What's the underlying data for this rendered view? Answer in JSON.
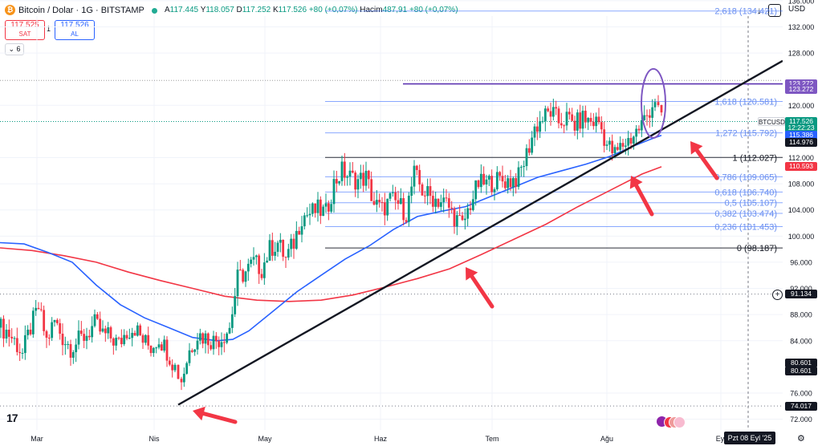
{
  "header": {
    "logo_glyph": "₿",
    "symbol_title": "Bitcoin / Dolar · 1G · BITSTAMP",
    "ohlc": {
      "open_label": "A",
      "open": "117.445",
      "high_label": "Y",
      "high": "118.057",
      "low_label": "D",
      "low": "117.252",
      "close_label": "K",
      "close": "117.526",
      "change": "+80 (+0,07%)",
      "volume_label": "Hacim",
      "volume": "487,91",
      "volume_change": "+80 (+0,07%)"
    },
    "currency": "USD"
  },
  "trade": {
    "sell_price": "117.525",
    "sell_label": "SAT",
    "spread": "1",
    "buy_price": "117.526",
    "buy_label": "AL",
    "indicators_count": "6"
  },
  "price_axis": {
    "ticks": [
      "136.000",
      "132.000",
      "128.000",
      "120.000",
      "112.000",
      "108.000",
      "104.000",
      "100.000",
      "96.000",
      "92.000",
      "88.000",
      "84.000",
      "76.000",
      "72.000"
    ],
    "tick_values": [
      136,
      132,
      128,
      120,
      112,
      108,
      104,
      100,
      96,
      92,
      88,
      84,
      76,
      72
    ],
    "labels": [
      {
        "text": "123.272",
        "value": 123.272,
        "color": "#7e57c2"
      },
      {
        "text": "123.272",
        "value": 122.45,
        "color": "#7e57c2"
      },
      {
        "text": "117.526",
        "value": 117.526,
        "color": "#089981"
      },
      {
        "text": "12:22:23",
        "value": 116.5,
        "color": "#089981"
      },
      {
        "text": "115.386",
        "value": 115.386,
        "color": "#2962ff"
      },
      {
        "text": "114.976",
        "value": 114.3,
        "color": "#131722"
      },
      {
        "text": "110.593",
        "value": 110.593,
        "color": "#f23645"
      },
      {
        "text": "91.134",
        "value": 91.134,
        "color": "#131722"
      },
      {
        "text": "80.601",
        "value": 80.601,
        "color": "#131722"
      },
      {
        "text": "80.601",
        "value": 79.4,
        "color": "#131722"
      },
      {
        "text": "74.017",
        "value": 74.017,
        "color": "#131722"
      }
    ],
    "ticker_label": "BTCUSD"
  },
  "time_axis": {
    "labels": [
      "Mar",
      "Nis",
      "May",
      "Haz",
      "Tem",
      "Ağu",
      "Eyl"
    ],
    "cursor_label": "Pzt 08 Eyl '25"
  },
  "chart_data": {
    "type": "candlestick",
    "title": "Bitcoin / Dolar · 1G · BITSTAMP",
    "ylim": [
      72,
      137
    ],
    "x_axis": {
      "type": "time",
      "months": [
        "Mar",
        "Nis",
        "May",
        "Haz",
        "Tem",
        "Ağu",
        "Eyl"
      ]
    },
    "last_close": 117.526,
    "series": [
      {
        "name": "price",
        "type": "candlestick",
        "approx_close_path": [
          [
            1,
            86
          ],
          [
            8,
            85.5
          ],
          [
            18,
            84
          ],
          [
            28,
            82
          ],
          [
            38,
            86
          ],
          [
            48,
            89
          ],
          [
            58,
            84
          ],
          [
            68,
            87
          ],
          [
            78,
            84.5
          ],
          [
            88,
            83
          ],
          [
            98,
            84
          ],
          [
            108,
            85
          ],
          [
            118,
            86.5
          ],
          [
            128,
            85
          ],
          [
            138,
            84.5
          ],
          [
            148,
            83.5
          ],
          [
            158,
            85.5
          ],
          [
            168,
            86
          ],
          [
            178,
            84
          ],
          [
            188,
            83
          ],
          [
            198,
            84.5
          ],
          [
            208,
            82.5
          ],
          [
            218,
            80
          ],
          [
            226,
            78
          ],
          [
            236,
            82.5
          ],
          [
            246,
            85
          ],
          [
            256,
            84.5
          ],
          [
            266,
            84
          ],
          [
            276,
            84.5
          ],
          [
            286,
            86
          ],
          [
            296,
            93.5
          ],
          [
            306,
            94.5
          ],
          [
            316,
            96
          ],
          [
            326,
            95
          ],
          [
            336,
            98
          ],
          [
            346,
            99
          ],
          [
            356,
            96.5
          ],
          [
            366,
            99
          ],
          [
            376,
            103
          ],
          [
            386,
            103.5
          ],
          [
            396,
            104
          ],
          [
            406,
            103.5
          ],
          [
            416,
            108
          ],
          [
            426,
            110
          ],
          [
            436,
            109
          ],
          [
            446,
            108.5
          ],
          [
            456,
            109
          ],
          [
            466,
            105
          ],
          [
            476,
            104
          ],
          [
            486,
            105.5
          ],
          [
            496,
            105
          ],
          [
            506,
            103.5
          ],
          [
            516,
            109.5
          ],
          [
            526,
            107
          ],
          [
            536,
            106
          ],
          [
            546,
            105.5
          ],
          [
            556,
            105
          ],
          [
            566,
            103
          ],
          [
            576,
            101.5
          ],
          [
            586,
            105
          ],
          [
            596,
            108
          ],
          [
            606,
            108
          ],
          [
            616,
            108.5
          ],
          [
            626,
            108.5
          ],
          [
            636,
            108.5
          ],
          [
            646,
            109
          ],
          [
            656,
            112.5
          ],
          [
            666,
            116.5
          ],
          [
            676,
            118
          ],
          [
            686,
            119
          ],
          [
            696,
            117.5
          ],
          [
            706,
            118
          ],
          [
            716,
            117
          ],
          [
            726,
            118
          ],
          [
            736,
            117.5
          ],
          [
            746,
            117.5
          ],
          [
            756,
            114
          ],
          [
            766,
            112.5
          ],
          [
            776,
            114
          ],
          [
            786,
            115
          ],
          [
            796,
            116.5
          ],
          [
            806,
            118.5
          ],
          [
            816,
            121
          ],
          [
            824,
            117.5
          ]
        ]
      },
      {
        "name": "sma_50",
        "type": "line",
        "color": "#2962ff",
        "values_in_data_units": "see approx path"
      },
      {
        "name": "sma_200",
        "type": "line",
        "color": "#f23645",
        "values_in_data_units": "see approx path"
      }
    ],
    "fibonacci": {
      "anchor_high": 123.272,
      "levels": [
        {
          "label": "2,618 (134.421)",
          "value": 134.421
        },
        {
          "label": "1,618 (120.581)",
          "value": 120.581
        },
        {
          "label": "1,272 (115.792)",
          "value": 115.792
        },
        {
          "label": "1 (112.027)",
          "value": 112.027
        },
        {
          "label": "0,786 (109.065)",
          "value": 109.065
        },
        {
          "label": "0,618 (106.740)",
          "value": 106.74
        },
        {
          "label": "0,5 (105.107)",
          "value": 105.107
        },
        {
          "label": "0,382 (103.474)",
          "value": 103.474
        },
        {
          "label": "0,236 (101.453)",
          "value": 101.453
        },
        {
          "label": "0 (98.187)",
          "value": 98.187
        }
      ]
    },
    "trendline": {
      "from_price": 74.0,
      "to_price": 123.3
    },
    "grid": true
  },
  "colors": {
    "up": "#089981",
    "down": "#f23645",
    "sma_fast": "#2962ff",
    "sma_slow": "#f23645",
    "fib": "#2962ff",
    "fib_text": "#6a8ff0",
    "arrows": "#f23645",
    "annotation": "#7e57c2"
  },
  "footer": {
    "tv_logo": "17",
    "gear_glyph": "⚙"
  },
  "toolbar": {
    "download_glyph": "↓"
  }
}
